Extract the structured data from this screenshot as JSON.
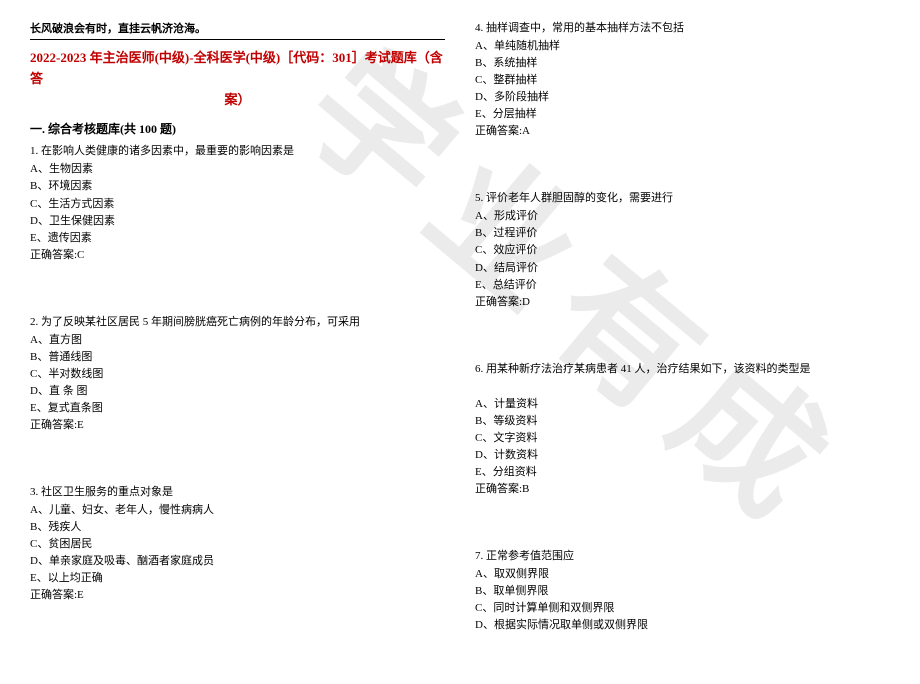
{
  "watermark": "学业有成",
  "header_slogan": "长风破浪会有时，直挂云帆济沧海。",
  "title_line1": "2022-2023 年主治医师(中级)-全科医学(中级)［代码：301］考试题库（含答",
  "title_line2": "案）",
  "section_header": "一. 综合考核题库(共 100 题)",
  "q1": {
    "stem": "1. 在影响人类健康的诸多因素中，最重要的影响因素是",
    "opts": [
      "A、生物因素",
      "B、环境因素",
      "C、生活方式因素",
      "D、卫生保健因素",
      "E、遗传因素"
    ],
    "ans": "正确答案:C"
  },
  "q2": {
    "stem": "2. 为了反映某社区居民 5 年期间膀胱癌死亡病例的年龄分布，可采用",
    "opts": [
      "A、直方图",
      "B、普通线图",
      "C、半对数线图",
      "D、直 条 图",
      "E、复式直条图"
    ],
    "ans": "正确答案:E"
  },
  "q3": {
    "stem": "3. 社区卫生服务的重点对象是",
    "opts": [
      "A、儿童、妇女、老年人，慢性病病人",
      "B、残疾人",
      "C、贫困居民",
      "D、单亲家庭及吸毒、酗酒者家庭成员",
      "E、以上均正确"
    ],
    "ans": "正确答案:E"
  },
  "q4": {
    "stem": "4. 抽样调查中，常用的基本抽样方法不包括",
    "opts": [
      "A、单纯随机抽样",
      "B、系统抽样",
      "C、整群抽样",
      "D、多阶段抽样",
      "E、分层抽样"
    ],
    "ans": "正确答案:A"
  },
  "q5": {
    "stem": "5. 评价老年人群胆固醇的变化，需要进行",
    "opts": [
      "A、形成评价",
      "B、过程评价",
      "C、效应评价",
      "D、结局评价",
      "E、总结评价"
    ],
    "ans": "正确答案:D"
  },
  "q6": {
    "stem": "6. 用某种新疗法治疗某病患者 41 人，治疗结果如下，该资料的类型是",
    "opts": [
      "A、计量资料",
      "B、等级资料",
      "C、文字资料",
      "D、计数资料",
      "E、分组资料"
    ],
    "ans": "正确答案:B"
  },
  "q7": {
    "stem": "7. 正常参考值范围应",
    "opts": [
      "A、取双侧界限",
      "B、取单侧界限",
      "C、同时计算单侧和双侧界限",
      "D、根据实际情况取单侧或双侧界限"
    ],
    "ans": ""
  }
}
